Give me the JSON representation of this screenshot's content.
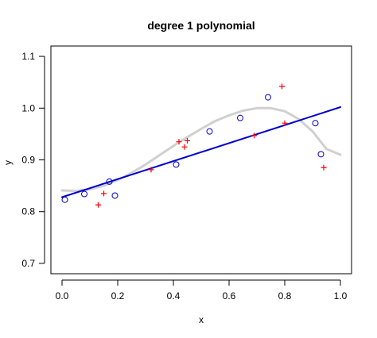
{
  "chart_data": {
    "type": "scatter",
    "title": "degree 1 polynomial",
    "xlabel": "x",
    "ylabel": "y",
    "xlim": [
      -0.04,
      1.04
    ],
    "ylim": [
      0.68,
      1.12
    ],
    "x_ticks": [
      "0.0",
      "0.2",
      "0.4",
      "0.6",
      "0.8",
      "1.0"
    ],
    "y_ticks": [
      "0.7",
      "0.8",
      "0.9",
      "1.0",
      "1.1"
    ],
    "x_tick_values": [
      0.0,
      0.2,
      0.4,
      0.6,
      0.8,
      1.0
    ],
    "y_tick_values": [
      0.7,
      0.8,
      0.9,
      1.0,
      1.1
    ],
    "grid": false,
    "legend": "none",
    "series": [
      {
        "marker": "circle",
        "color": "#0000cc",
        "points": [
          [
            0.01,
            0.823
          ],
          [
            0.08,
            0.834
          ],
          [
            0.17,
            0.858
          ],
          [
            0.19,
            0.831
          ],
          [
            0.41,
            0.891
          ],
          [
            0.53,
            0.955
          ],
          [
            0.64,
            0.981
          ],
          [
            0.74,
            1.021
          ],
          [
            0.91,
            0.971
          ],
          [
            0.93,
            0.911
          ]
        ]
      },
      {
        "marker": "plus",
        "color": "#ff0000",
        "points": [
          [
            0.13,
            0.813
          ],
          [
            0.15,
            0.835
          ],
          [
            0.32,
            0.881
          ],
          [
            0.42,
            0.935
          ],
          [
            0.44,
            0.925
          ],
          [
            0.45,
            0.937
          ],
          [
            0.69,
            0.947
          ],
          [
            0.79,
            1.042
          ],
          [
            0.8,
            0.971
          ],
          [
            0.94,
            0.885
          ]
        ]
      },
      {
        "type": "line",
        "color": "#d0d0d0",
        "x": [
          0.0,
          0.05,
          0.1,
          0.15,
          0.2,
          0.25,
          0.3,
          0.35,
          0.4,
          0.45,
          0.5,
          0.55,
          0.6,
          0.65,
          0.7,
          0.75,
          0.8,
          0.85,
          0.9,
          0.95,
          1.0
        ],
        "y": [
          0.841,
          0.84,
          0.843,
          0.85,
          0.861,
          0.875,
          0.891,
          0.909,
          0.927,
          0.944,
          0.96,
          0.975,
          0.986,
          0.995,
          1.0,
          1.0,
          0.994,
          0.979,
          0.955,
          0.921,
          0.91
        ]
      },
      {
        "type": "line",
        "color": "#0000cc",
        "x": [
          0.0,
          1.0
        ],
        "y": [
          0.828,
          1.002
        ]
      }
    ]
  }
}
